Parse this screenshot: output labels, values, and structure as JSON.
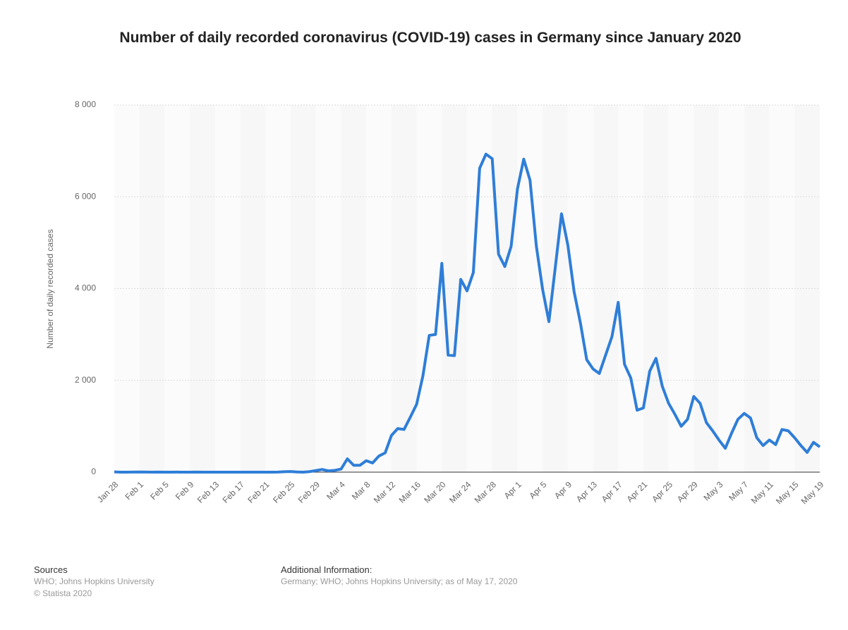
{
  "chart_data": {
    "type": "line",
    "title": "Number of daily recorded coronavirus (COVID-19) cases in Germany since January 2020",
    "y_label": "Number of daily recorded cases",
    "categories": [
      "Jan 28",
      null,
      null,
      null,
      "Feb 1",
      null,
      null,
      null,
      "Feb 5",
      null,
      null,
      null,
      "Feb 9",
      null,
      null,
      null,
      "Feb 13",
      null,
      null,
      null,
      "Feb 17",
      null,
      null,
      null,
      "Feb 21",
      null,
      null,
      null,
      "Feb 25",
      null,
      null,
      null,
      "Feb 29",
      null,
      null,
      null,
      "Mar 4",
      null,
      null,
      null,
      "Mar 8",
      null,
      null,
      null,
      "Mar 12",
      null,
      null,
      null,
      "Mar 16",
      null,
      null,
      null,
      "Mar 20",
      null,
      null,
      null,
      "Mar 24",
      null,
      null,
      null,
      "Mar 28",
      null,
      null,
      null,
      "Apr 1",
      null,
      null,
      null,
      "Apr 5",
      null,
      null,
      null,
      "Apr 9",
      null,
      null,
      null,
      "Apr 13",
      null,
      null,
      null,
      "Apr 17",
      null,
      null,
      null,
      "Apr 21",
      null,
      null,
      null,
      "Apr 25",
      null,
      null,
      null,
      "Apr 29",
      null,
      null,
      null,
      "May 3",
      null,
      null,
      null,
      "May 7",
      null,
      null,
      null,
      "May 11",
      null,
      null,
      null,
      "May 15",
      null,
      null,
      null,
      "May 19"
    ],
    "values": [
      6,
      0,
      0,
      1,
      3,
      1,
      0,
      2,
      0,
      0,
      1,
      0,
      0,
      2,
      0,
      0,
      0,
      0,
      0,
      0,
      0,
      0,
      0,
      0,
      0,
      0,
      1,
      10,
      13,
      3,
      0,
      12,
      35,
      59,
      28,
      39,
      66,
      290,
      150,
      150,
      250,
      200,
      350,
      420,
      800,
      950,
      930,
      1200,
      1480,
      2100,
      2980,
      3000,
      4550,
      2550,
      2540,
      4200,
      3950,
      4350,
      6620,
      6930,
      6830,
      4750,
      4480,
      4920,
      6170,
      6820,
      6360,
      4930,
      3980,
      3280,
      4450,
      5630,
      4950,
      3930,
      3250,
      2450,
      2250,
      2150,
      2550,
      2950,
      3700,
      2350,
      2050,
      1350,
      1400,
      2200,
      2480,
      1870,
      1500,
      1260,
      1000,
      1150,
      1650,
      1500,
      1080,
      900,
      700,
      520,
      850,
      1150,
      1280,
      1180,
      750,
      580,
      700,
      600,
      930,
      900,
      750,
      580,
      430,
      650,
      550
    ],
    "color": "#2f7ed8",
    "ylim": [
      0,
      8000
    ],
    "yticks": [
      0,
      {
        "value": 2000,
        "label": "2 000"
      },
      {
        "value": 4000,
        "label": "4 000"
      },
      {
        "value": 6000,
        "label": "6 000"
      },
      {
        "value": 8000,
        "label": "8 000"
      }
    ],
    "grid": true
  },
  "footer": {
    "sources_title": "Sources",
    "sources": [
      "WHO; Johns Hopkins University",
      "© Statista 2020"
    ],
    "info_title": "Additional Information:",
    "info": "Germany; WHO; Johns Hopkins University; as of May 17, 2020"
  }
}
